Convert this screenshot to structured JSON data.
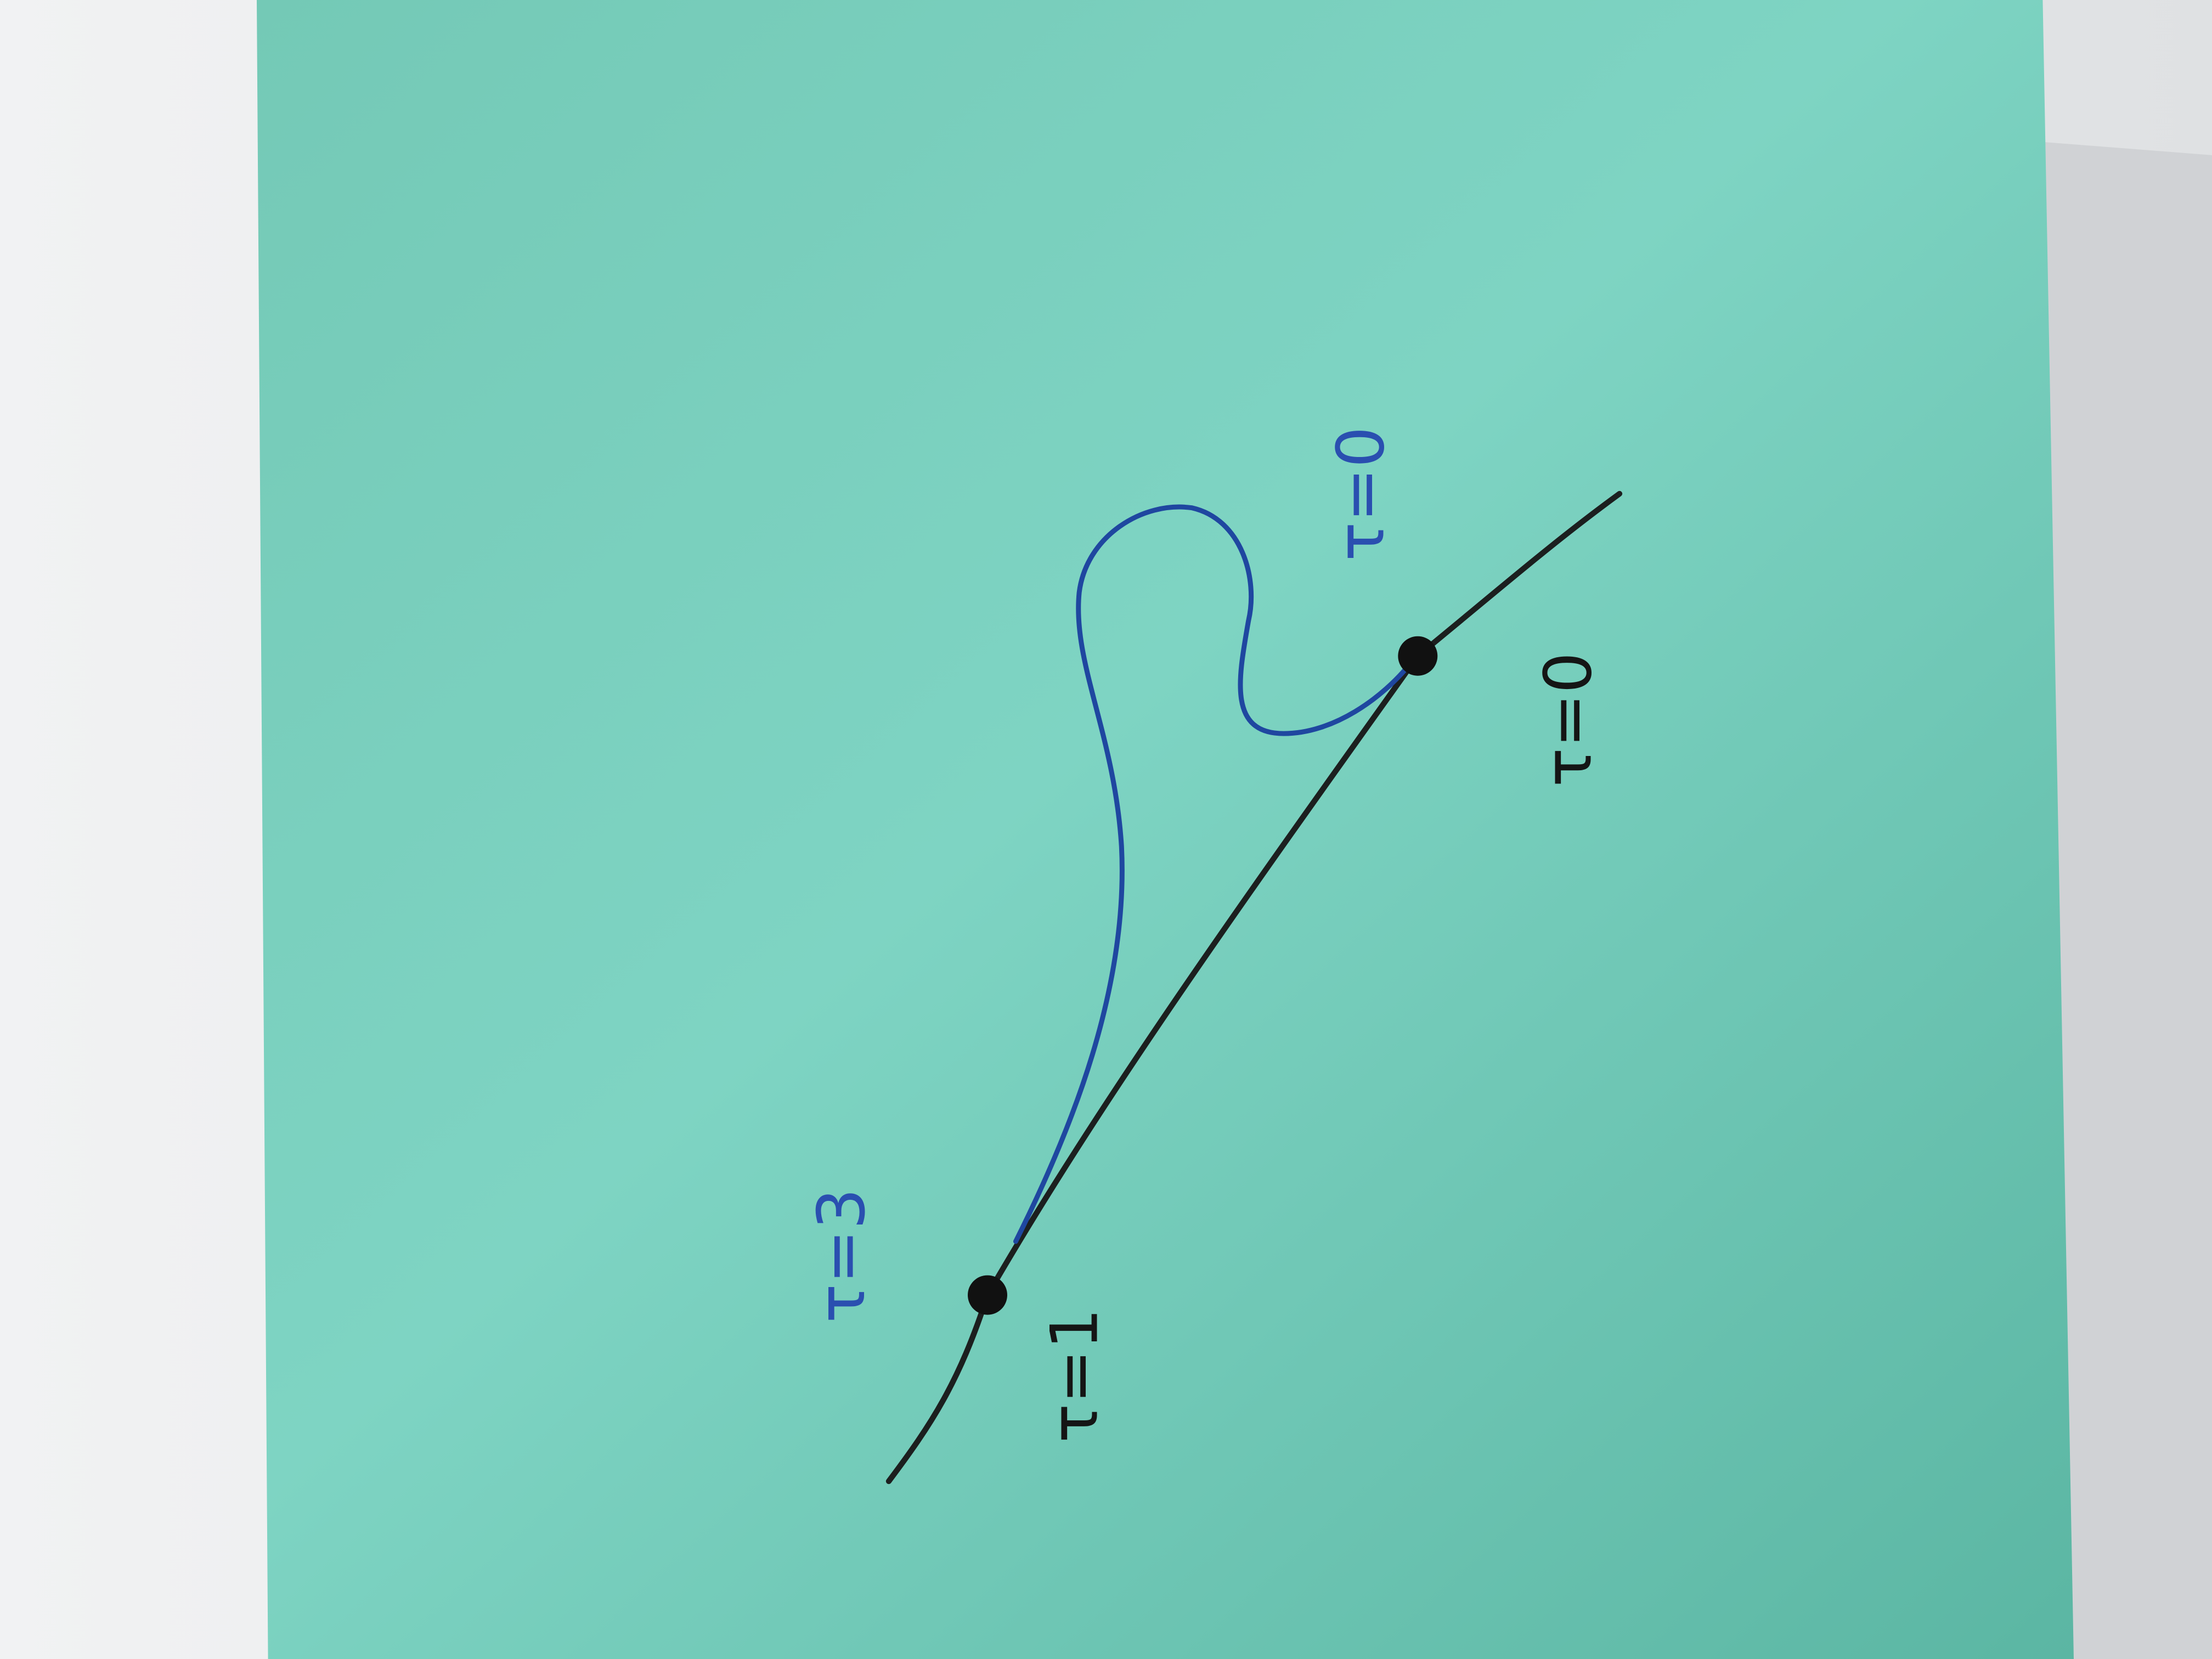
{
  "labels": {
    "blue_start": "τ=3",
    "black_start": "τ=1",
    "blue_end": "τ=0",
    "black_end": "τ=0"
  }
}
